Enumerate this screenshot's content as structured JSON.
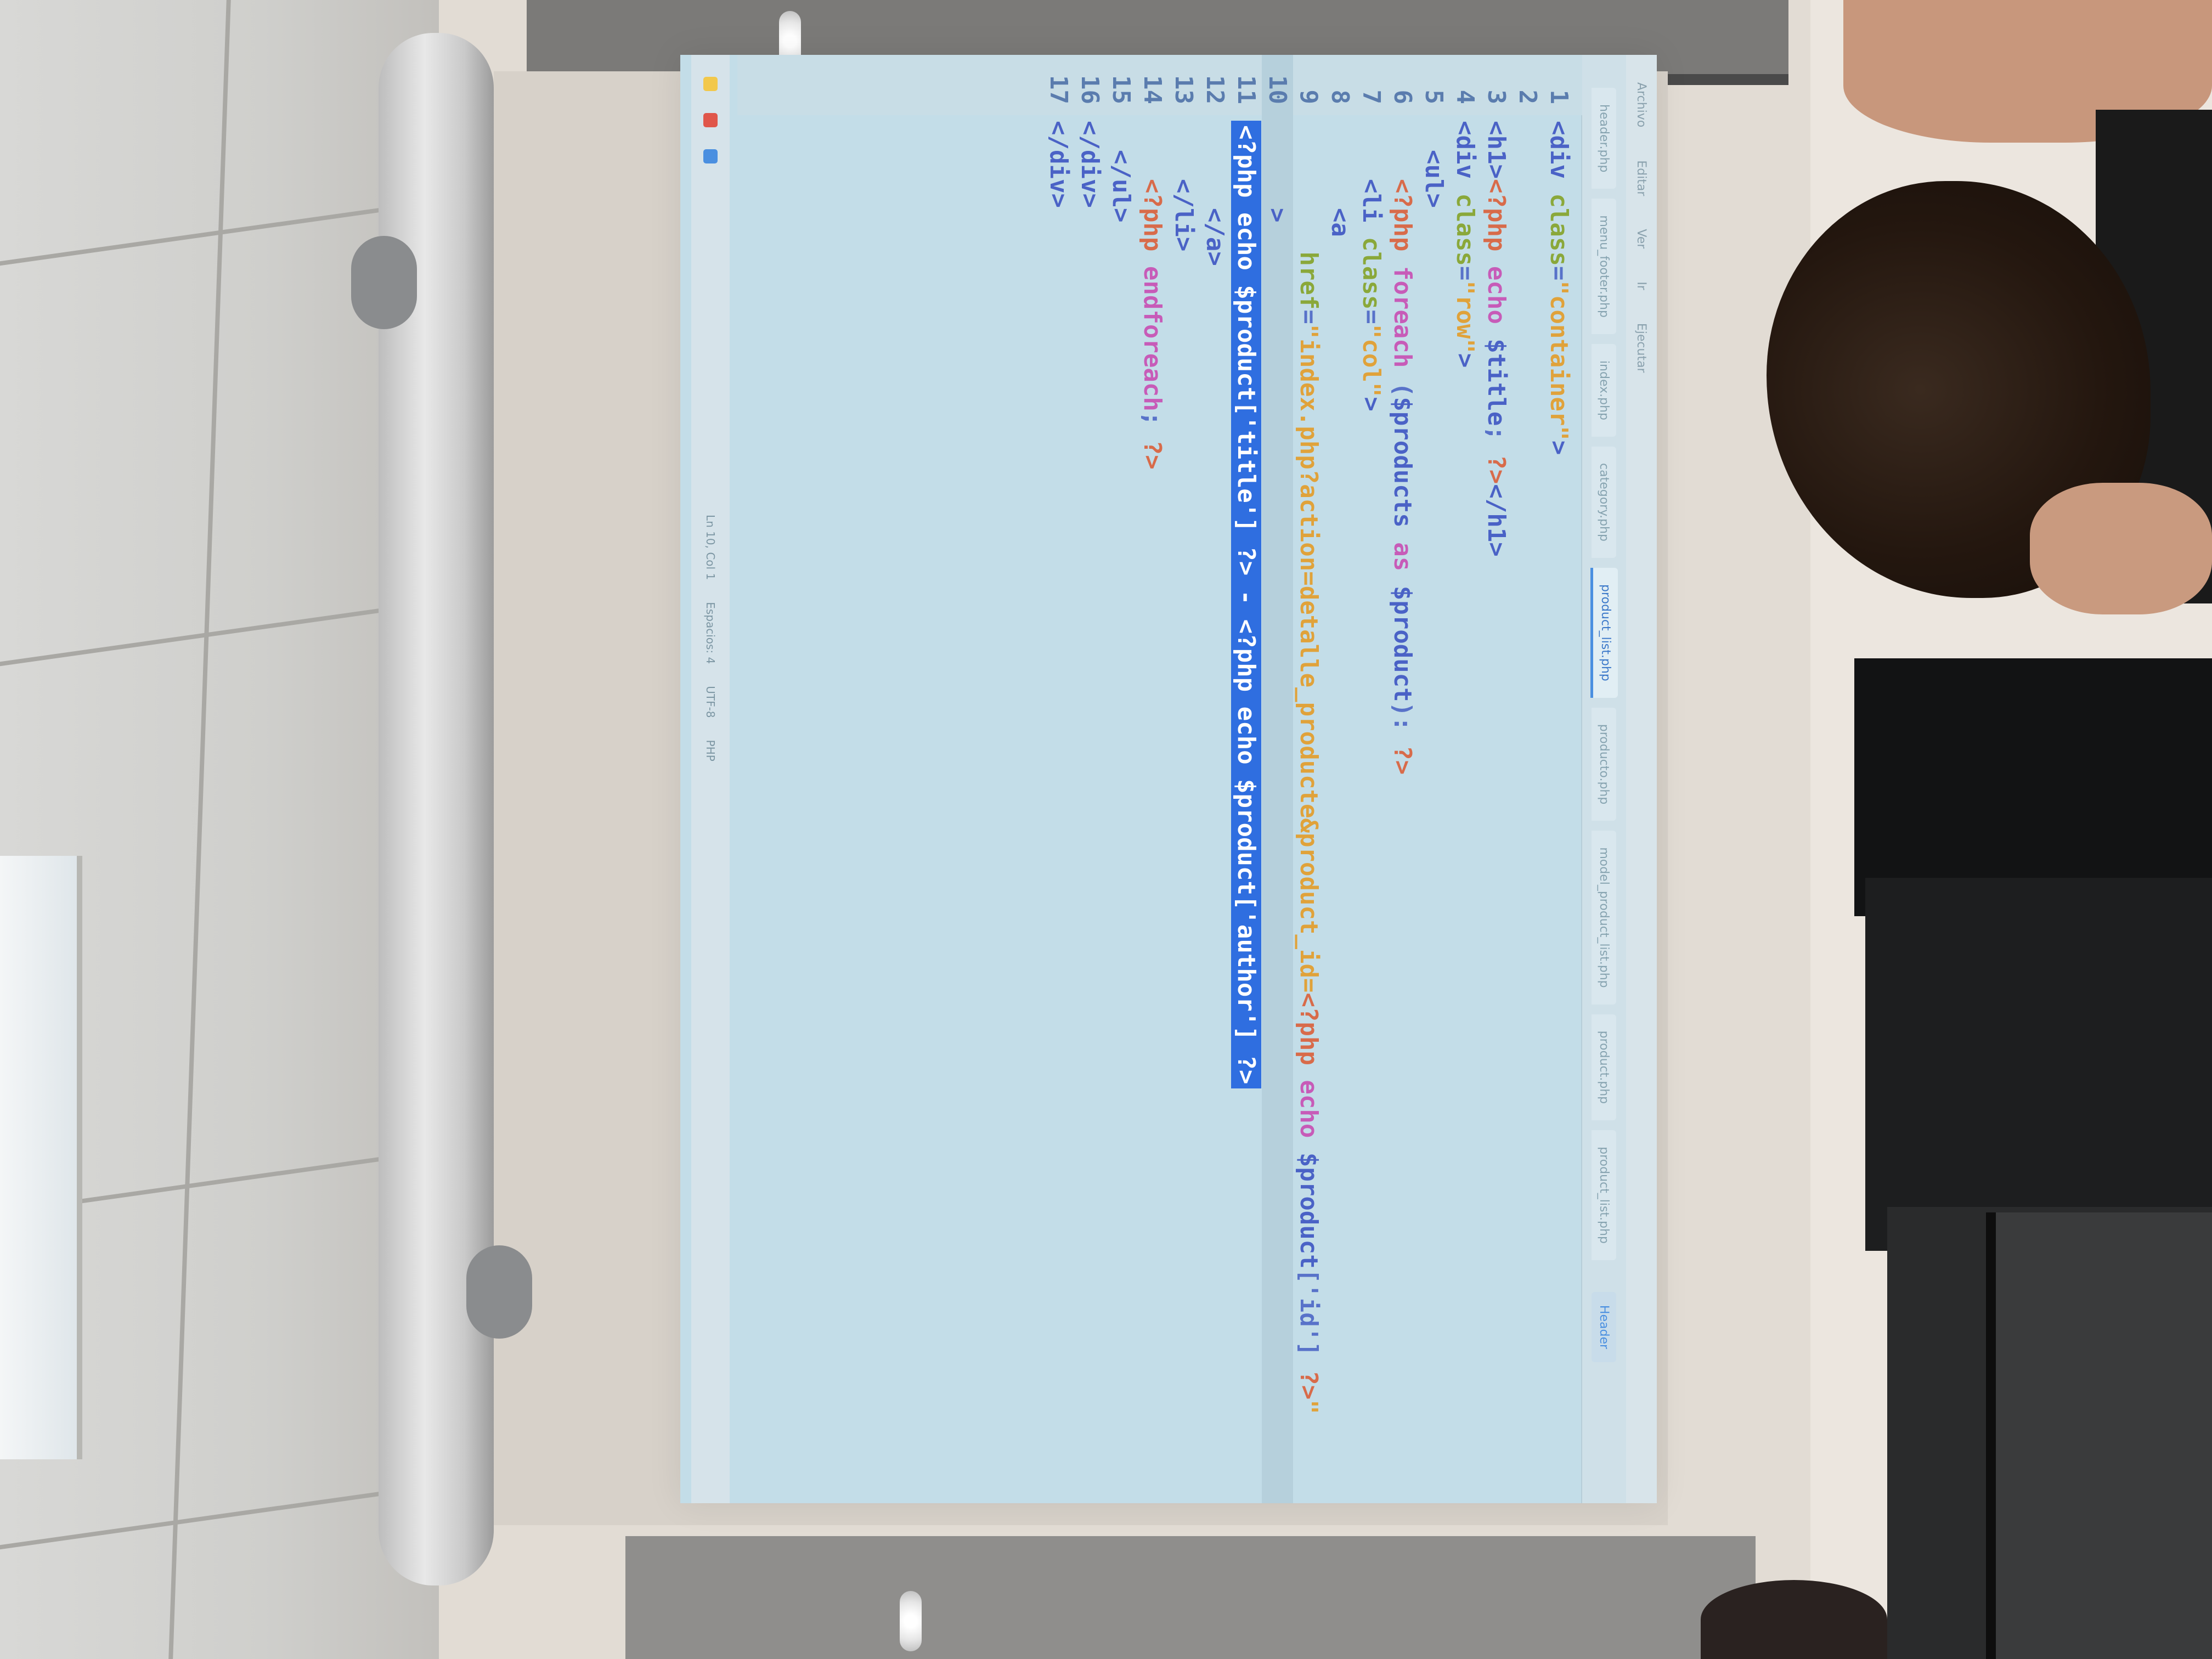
{
  "editor": {
    "menu": [
      "Archivo",
      "Editar",
      "Ver",
      "Ir",
      "Ejecutar"
    ],
    "tabs": [
      {
        "label": "header.php",
        "active": false
      },
      {
        "label": "menu_footer.php",
        "active": false
      },
      {
        "label": "index.php",
        "active": false
      },
      {
        "label": "category.php",
        "active": false
      },
      {
        "label": "product_list.php",
        "active": true
      },
      {
        "label": "producto.php",
        "active": false
      },
      {
        "label": "model_product_list.php",
        "active": false
      },
      {
        "label": "product.php",
        "active": false
      },
      {
        "label": "product_list.php",
        "active": false
      }
    ],
    "tab_button": "Header",
    "code_lines": [
      {
        "n": "1",
        "parts": [
          [
            "t-tag",
            "<div "
          ],
          [
            "t-attr",
            "class"
          ],
          [
            "t-plain",
            "="
          ],
          [
            "t-str",
            "\"container\""
          ],
          [
            "t-tag",
            ">"
          ]
        ]
      },
      {
        "n": "2",
        "parts": []
      },
      {
        "n": "3",
        "parts": [
          [
            "t-tag",
            "<h1>"
          ],
          [
            "t-php",
            "<?php "
          ],
          [
            "t-kw",
            "echo "
          ],
          [
            "t-var",
            "$title"
          ],
          [
            "t-plain",
            "; "
          ],
          [
            "t-php",
            "?>"
          ],
          [
            "t-tag",
            "</h1>"
          ]
        ]
      },
      {
        "n": "4",
        "parts": [
          [
            "t-tag",
            "<div "
          ],
          [
            "t-attr",
            "class"
          ],
          [
            "t-plain",
            "="
          ],
          [
            "t-str",
            "\"row\""
          ],
          [
            "t-tag",
            ">"
          ]
        ]
      },
      {
        "n": "5",
        "parts": [
          [
            "t-tag",
            "  <ul>"
          ]
        ]
      },
      {
        "n": "6",
        "parts": [
          [
            "t-php",
            "    <?php "
          ],
          [
            "t-kw",
            "foreach "
          ],
          [
            "t-plain",
            "("
          ],
          [
            "t-var",
            "$products "
          ],
          [
            "t-kw",
            "as "
          ],
          [
            "t-var",
            "$product"
          ],
          [
            "t-plain",
            "): "
          ],
          [
            "t-php",
            "?>"
          ]
        ]
      },
      {
        "n": "7",
        "parts": [
          [
            "t-tag",
            "    <li "
          ],
          [
            "t-attr",
            "class"
          ],
          [
            "t-plain",
            "="
          ],
          [
            "t-str",
            "\"col\""
          ],
          [
            "t-tag",
            ">"
          ]
        ]
      },
      {
        "n": "8",
        "parts": [
          [
            "t-tag",
            "      <a"
          ]
        ]
      },
      {
        "n": "9",
        "parts": [
          [
            "t-attr",
            "         href"
          ],
          [
            "t-plain",
            "="
          ],
          [
            "t-str",
            "\"index.php?action=detalle_producte&product_id="
          ],
          [
            "t-php",
            "<?php "
          ],
          [
            "t-kw",
            "echo "
          ],
          [
            "t-var",
            "$product"
          ],
          [
            "t-plain",
            "['id'] "
          ],
          [
            "t-php",
            "?>"
          ],
          [
            "t-str",
            "\""
          ]
        ]
      },
      {
        "n": "10",
        "parts": [
          [
            "t-tag",
            "      >"
          ]
        ],
        "highlight": true
      },
      {
        "n": "11",
        "parts": [
          [
            "sel",
            "<?php echo $product['title'] ?> - <?php echo $product['author'] ?>"
          ]
        ]
      },
      {
        "n": "12",
        "parts": [
          [
            "t-tag",
            "      </a>"
          ]
        ]
      },
      {
        "n": "13",
        "parts": [
          [
            "t-tag",
            "    </li>"
          ]
        ]
      },
      {
        "n": "14",
        "parts": [
          [
            "t-php",
            "    <?php "
          ],
          [
            "t-kw",
            "endforeach"
          ],
          [
            "t-plain",
            "; "
          ],
          [
            "t-php",
            "?>"
          ]
        ]
      },
      {
        "n": "15",
        "parts": [
          [
            "t-tag",
            "  </ul>"
          ]
        ]
      },
      {
        "n": "16",
        "parts": [
          [
            "t-tag",
            "</div>"
          ]
        ]
      },
      {
        "n": "17",
        "parts": [
          [
            "t-tag",
            "</div>"
          ]
        ]
      }
    ],
    "status": [
      "Ln 10, Col 1",
      "Espacios: 4",
      "UTF-8",
      "PHP"
    ]
  },
  "colors": {
    "screen_bg": "#c3dde8",
    "selection": "#2f6ee0",
    "tag": "#4a62c6",
    "attr": "#8aa83a",
    "string": "#e0a23a",
    "php": "#d86b4a",
    "keyword": "#c75bb8"
  }
}
